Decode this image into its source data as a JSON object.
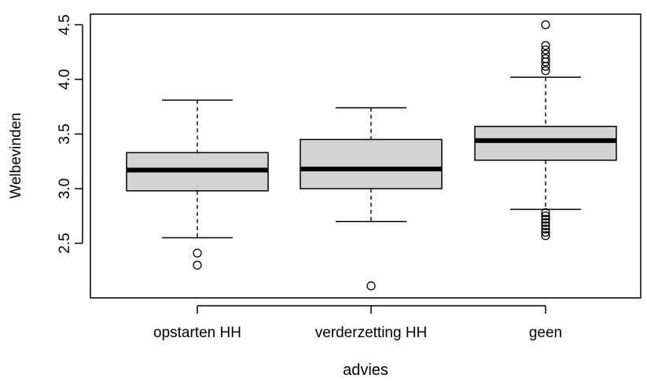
{
  "chart_data": {
    "type": "boxplot",
    "title": "",
    "xlabel": "advies",
    "ylabel": "Welbevinden",
    "ylim": [
      2.05,
      4.5
    ],
    "yticks": [
      2.5,
      3.0,
      3.5,
      4.0,
      4.5
    ],
    "ytick_labels": [
      "2.5",
      "3.0",
      "3.5",
      "4.0",
      "4.5"
    ],
    "categories": [
      "opstarten HH",
      "verderzetting HH",
      "geen"
    ],
    "box_fill": "#d3d3d3",
    "series": [
      {
        "category": "opstarten HH",
        "whisker_low": 2.55,
        "q1": 2.98,
        "median": 3.17,
        "q3": 3.33,
        "whisker_high": 3.81,
        "outliers": [
          2.41,
          2.3
        ]
      },
      {
        "category": "verderzetting HH",
        "whisker_low": 2.7,
        "q1": 3.0,
        "median": 3.18,
        "q3": 3.45,
        "whisker_high": 3.74,
        "outliers": [
          2.11
        ]
      },
      {
        "category": "geen",
        "whisker_low": 2.81,
        "q1": 3.26,
        "median": 3.44,
        "q3": 3.57,
        "whisker_high": 4.02,
        "outliers": [
          4.5,
          4.31,
          4.27,
          4.23,
          4.19,
          4.16,
          4.12,
          4.08,
          2.78,
          2.75,
          2.72,
          2.69,
          2.66,
          2.63,
          2.6,
          2.57
        ]
      }
    ]
  }
}
